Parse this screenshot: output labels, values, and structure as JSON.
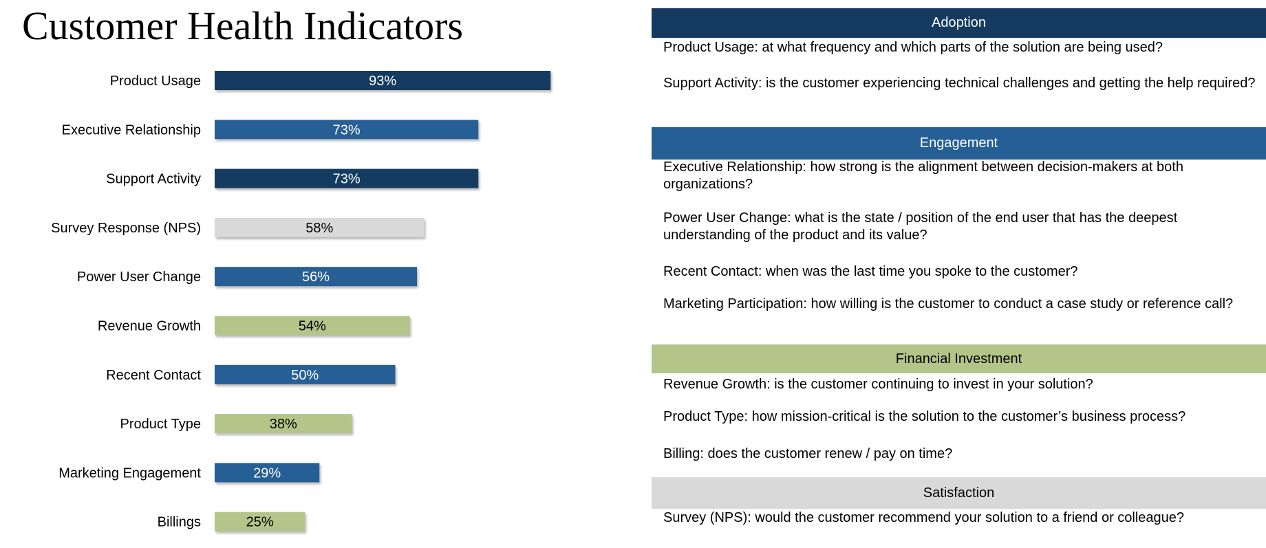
{
  "title": "Customer Health Indicators",
  "colors": {
    "Adoption": "#153a61",
    "Engagement": "#265f96",
    "Financial Investment": "#b4c58a",
    "Satisfaction": "#d9d9d9"
  },
  "chart_data": {
    "type": "bar",
    "orientation": "horizontal",
    "categories": [
      "Product Usage",
      "Executive Relationship",
      "Support Activity",
      "Survey Response (NPS)",
      "Power User Change",
      "Revenue Growth",
      "Recent Contact",
      "Product Type",
      "Marketing Engagement",
      "Billings"
    ],
    "values": [
      93,
      73,
      73,
      58,
      56,
      54,
      50,
      38,
      29,
      25
    ],
    "value_labels": [
      "93%",
      "73%",
      "73%",
      "58%",
      "56%",
      "54%",
      "50%",
      "38%",
      "29%",
      "25%"
    ],
    "bar_groups": [
      "Adoption",
      "Engagement",
      "Adoption",
      "Satisfaction",
      "Engagement",
      "Financial Investment",
      "Engagement",
      "Financial Investment",
      "Engagement",
      "Financial Investment"
    ],
    "xlim": [
      0,
      100
    ],
    "unit": "%",
    "grid": false,
    "legend_position": "right"
  },
  "legend": [
    {
      "name": "Adoption",
      "descriptions": [
        "Product Usage: at what frequency and which parts of the solution are being used?",
        "Support Activity: is the customer experiencing technical challenges and getting the help required?"
      ]
    },
    {
      "name": "Engagement",
      "descriptions": [
        "Executive Relationship: how strong is the alignment between decision-makers at both organizations?",
        "Power User Change: what is the state / position of the end user that has the deepest understanding of the product and its value?",
        "Recent Contact: when was the last time you spoke to the customer?",
        "Marketing Participation: how willing is the customer to conduct a case study or reference call?"
      ]
    },
    {
      "name": "Financial Investment",
      "descriptions": [
        "Revenue Growth: is the customer continuing to invest in your solution?",
        "Product Type: how mission-critical is the solution to the customer’s business process?",
        "Billing: does the customer renew / pay on time?"
      ]
    },
    {
      "name": "Satisfaction",
      "descriptions": [
        "Survey (NPS): would the customer recommend your solution to a friend or colleague?"
      ]
    }
  ]
}
